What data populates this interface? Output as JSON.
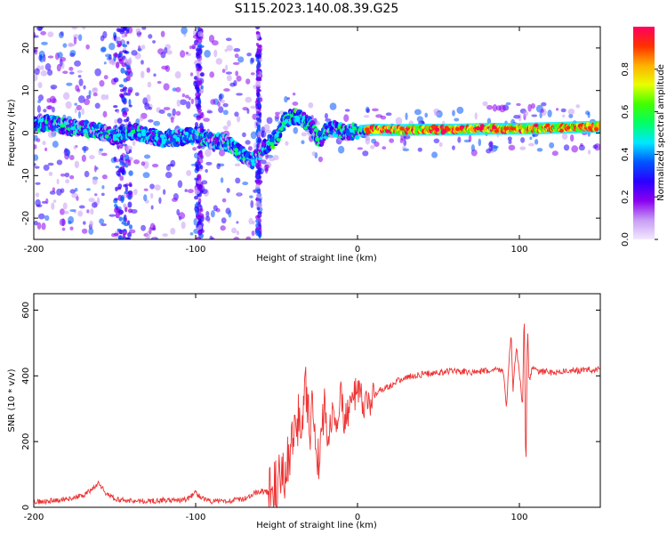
{
  "title": "S115.2023.140.08.39.G25",
  "chart_data": [
    {
      "type": "heatmap",
      "xlabel": "Height of straight line (km)",
      "ylabel": "Frequency (Hz)",
      "xlim": [
        -200,
        150
      ],
      "ylim": [
        -25,
        25
      ],
      "xticks": [
        -200,
        -100,
        0,
        100
      ],
      "xtick_labels": [
        "-200",
        "-100",
        "0",
        "100"
      ],
      "yticks": [
        -20,
        -10,
        0,
        10,
        20
      ],
      "ytick_labels": [
        "-20",
        "-10",
        "0",
        "10",
        "20"
      ],
      "grid": false,
      "colorbar": {
        "label": "Normalized spectral amplitude",
        "range": [
          0.0,
          1.0
        ],
        "ticks": [
          0.0,
          0.2,
          0.4,
          0.6,
          0.8
        ],
        "tick_labels": [
          "0.0",
          "0.2",
          "0.4",
          "0.6",
          "0.8"
        ],
        "colormap": [
          "#f3e9ff",
          "#c79cf4",
          "#8a00f0",
          "#2a00ff",
          "#0055ff",
          "#00e8ff",
          "#00ff66",
          "#40ff00",
          "#e8ff00",
          "#ffb000",
          "#ff3000",
          "#ff0060"
        ]
      },
      "ridge": {
        "x": [
          -200,
          -190,
          -180,
          -170,
          -160,
          -150,
          -140,
          -130,
          -120,
          -110,
          -100,
          -90,
          -80,
          -70,
          -65,
          -60,
          -55,
          -50,
          -45,
          -40,
          -35,
          -30,
          -25,
          -22,
          -20,
          -15,
          -10,
          -5,
          0,
          10,
          20,
          40,
          60,
          80,
          100,
          120,
          150
        ],
        "y": [
          2,
          2.5,
          1.5,
          1,
          0.5,
          -1,
          0.5,
          -0.5,
          -1.5,
          -1,
          -0.5,
          -1.5,
          -2.5,
          -5.5,
          -6.5,
          -4.5,
          -2.5,
          -1,
          3,
          4,
          3.5,
          2.5,
          -1,
          -1.5,
          0.5,
          1,
          0.5,
          0.2,
          0.5,
          0.8,
          0.7,
          0.8,
          0.8,
          1,
          1,
          1.2,
          1.5
        ]
      }
    },
    {
      "type": "line",
      "xlabel": "Height of straight line (km)",
      "ylabel": "SNR (10 * v/v)",
      "xlim": [
        -200,
        150
      ],
      "ylim": [
        0,
        650
      ],
      "xticks": [
        -200,
        -100,
        0,
        100
      ],
      "xtick_labels": [
        "-200",
        "-100",
        "0",
        "100"
      ],
      "yticks": [
        0,
        200,
        400,
        600
      ],
      "ytick_labels": [
        "0",
        "200",
        "400",
        "600"
      ],
      "grid": false,
      "series": [
        {
          "color": "#ee3333",
          "x": [
            -200,
            -190,
            -180,
            -170,
            -165,
            -160,
            -155,
            -150,
            -140,
            -130,
            -120,
            -110,
            -105,
            -100,
            -95,
            -90,
            -80,
            -70,
            -65,
            -60,
            -55,
            -50,
            -45,
            -42,
            -40,
            -38,
            -35,
            -32,
            -30,
            -28,
            -25,
            -22,
            -20,
            -18,
            -15,
            -12,
            -10,
            -8,
            -5,
            -2,
            0,
            5,
            10,
            15,
            20,
            25,
            30,
            35,
            40,
            50,
            60,
            70,
            80,
            85,
            90,
            92,
            94,
            95,
            96,
            98,
            100,
            102,
            103,
            104,
            105,
            106,
            108,
            110,
            120,
            130,
            140,
            150
          ],
          "y": [
            15,
            20,
            25,
            35,
            50,
            75,
            40,
            25,
            20,
            18,
            22,
            20,
            25,
            45,
            25,
            18,
            20,
            25,
            40,
            50,
            45,
            60,
            100,
            160,
            220,
            310,
            200,
            350,
            240,
            280,
            120,
            250,
            300,
            200,
            290,
            270,
            340,
            260,
            310,
            330,
            350,
            300,
            340,
            360,
            370,
            385,
            395,
            400,
            405,
            410,
            415,
            410,
            415,
            418,
            420,
            300,
            480,
            520,
            350,
            490,
            410,
            300,
            620,
            80,
            560,
            380,
            430,
            415,
            410,
            415,
            418,
            420
          ]
        }
      ]
    }
  ]
}
